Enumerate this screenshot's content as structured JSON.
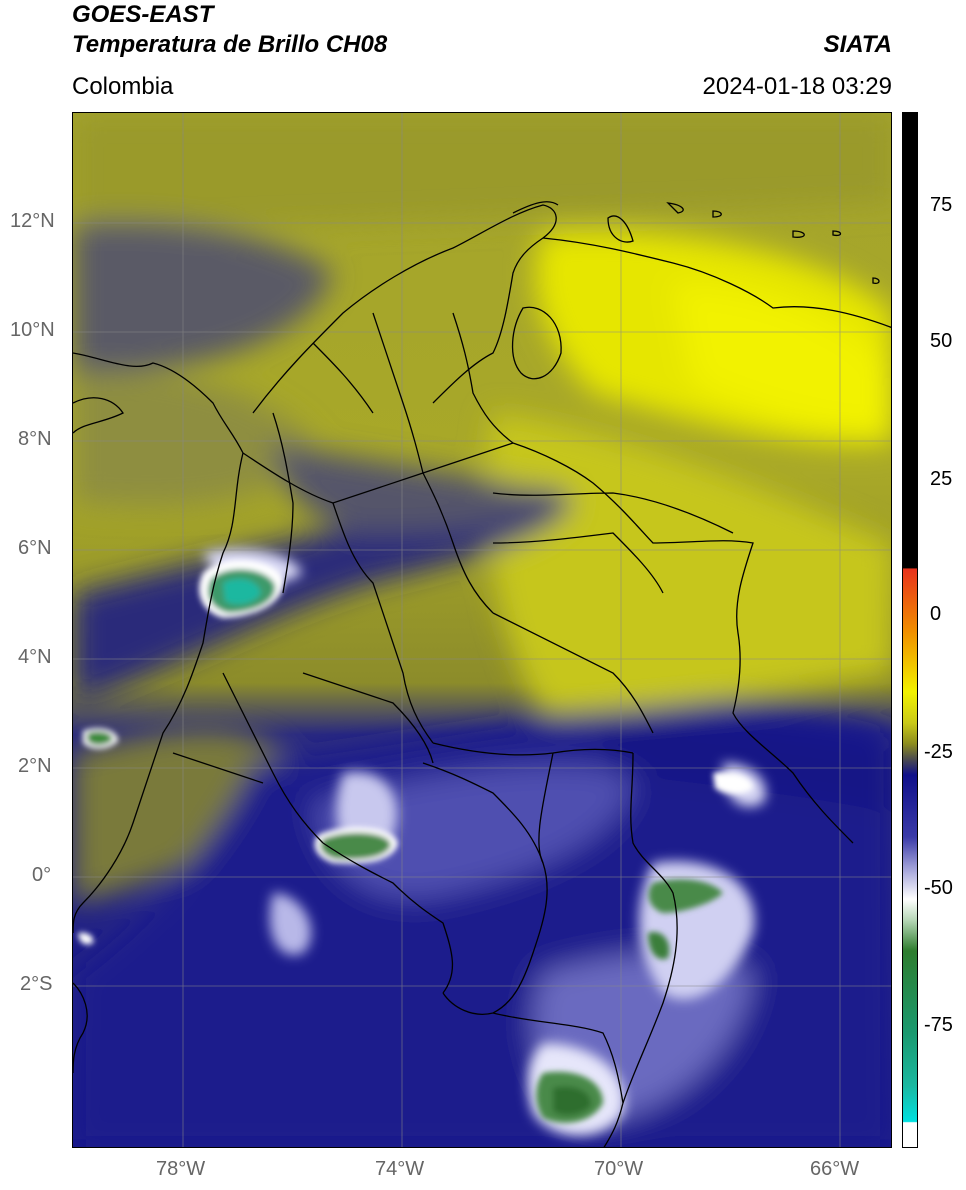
{
  "header": {
    "title_line1": "GOES-EAST",
    "title_line2": "Temperatura de Brillo CH08",
    "region": "Colombia",
    "brand": "SIATA",
    "timestamp": "2024-01-18 03:29"
  },
  "map": {
    "lat_ticks": [
      {
        "value": 12,
        "label": "12°N"
      },
      {
        "value": 10,
        "label": "10°N"
      },
      {
        "value": 8,
        "label": "8°N"
      },
      {
        "value": 6,
        "label": "6°N"
      },
      {
        "value": 4,
        "label": "4°N"
      },
      {
        "value": 2,
        "label": "2°N"
      },
      {
        "value": 0,
        "label": "0°"
      },
      {
        "value": -2,
        "label": "2°S"
      }
    ],
    "lon_ticks": [
      {
        "value": -78,
        "label": "78°W"
      },
      {
        "value": -74,
        "label": "74°W"
      },
      {
        "value": -70,
        "label": "70°W"
      },
      {
        "value": -66,
        "label": "66°W"
      }
    ],
    "extent": {
      "lon_min": -80,
      "lon_max": -65,
      "lat_min": -5,
      "lat_max": 14
    },
    "grid": true
  },
  "colorbar": {
    "ticks": [
      {
        "value": 75,
        "label": "75"
      },
      {
        "value": 50,
        "label": "50"
      },
      {
        "value": 25,
        "label": "25"
      },
      {
        "value": 0,
        "label": "0"
      },
      {
        "value": -25,
        "label": "-25"
      },
      {
        "value": -50,
        "label": "-50"
      },
      {
        "value": -75,
        "label": "-75"
      }
    ],
    "range": [
      -95,
      90
    ],
    "colors": {
      "high": "#000000",
      "warm_red": "#e8321c",
      "orange": "#f08c00",
      "yellow": "#f2f200",
      "olive": "#8c8c1e",
      "gray": "#4a4a50",
      "navy": "#10108a",
      "lavender": "#a0a0d8",
      "white": "#ffffff",
      "green": "#2e7d2e",
      "teal": "#1ab8a0",
      "cyan": "#00e0e0"
    }
  }
}
